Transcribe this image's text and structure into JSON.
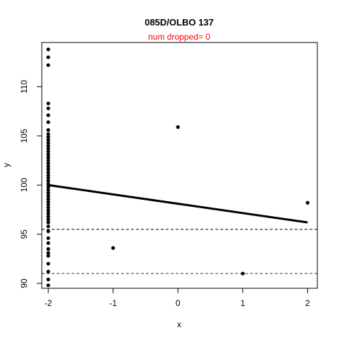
{
  "chart_data": {
    "type": "scatter",
    "title": "085D/OLBO 137",
    "subtitle": "num dropped= 0",
    "xlabel": "x",
    "ylabel": "y",
    "xlim": [
      -2.1,
      2.15
    ],
    "ylim": [
      89.5,
      114.5
    ],
    "xticks": [
      -2,
      -1,
      0,
      1,
      2
    ],
    "xtick_labels": [
      "-2",
      "-1",
      "0",
      "1",
      "2"
    ],
    "yticks": [
      90,
      95,
      100,
      105,
      110
    ],
    "ytick_labels": [
      "90",
      "95",
      "100",
      "105",
      "110"
    ],
    "grid": false,
    "points": [
      {
        "x": -2,
        "y": 113.8
      },
      {
        "x": -2,
        "y": 113.0
      },
      {
        "x": -2,
        "y": 112.2
      },
      {
        "x": -2,
        "y": 108.3
      },
      {
        "x": -2,
        "y": 107.8
      },
      {
        "x": -2,
        "y": 107.1
      },
      {
        "x": -2,
        "y": 106.4
      },
      {
        "x": -2,
        "y": 105.6
      },
      {
        "x": -2,
        "y": 105.2
      },
      {
        "x": -2,
        "y": 104.9
      },
      {
        "x": -2,
        "y": 104.6
      },
      {
        "x": -2,
        "y": 104.3
      },
      {
        "x": -2,
        "y": 104.0
      },
      {
        "x": -2,
        "y": 103.7
      },
      {
        "x": -2,
        "y": 103.4
      },
      {
        "x": -2,
        "y": 103.1
      },
      {
        "x": -2,
        "y": 102.8
      },
      {
        "x": -2,
        "y": 102.5
      },
      {
        "x": -2,
        "y": 102.2
      },
      {
        "x": -2,
        "y": 101.9
      },
      {
        "x": -2,
        "y": 101.6
      },
      {
        "x": -2,
        "y": 101.3
      },
      {
        "x": -2,
        "y": 101.0
      },
      {
        "x": -2,
        "y": 100.7
      },
      {
        "x": -2,
        "y": 100.4
      },
      {
        "x": -2,
        "y": 100.1
      },
      {
        "x": -2,
        "y": 99.8
      },
      {
        "x": -2,
        "y": 99.5
      },
      {
        "x": -2,
        "y": 99.2
      },
      {
        "x": -2,
        "y": 98.9
      },
      {
        "x": -2,
        "y": 98.6
      },
      {
        "x": -2,
        "y": 98.3
      },
      {
        "x": -2,
        "y": 98.0
      },
      {
        "x": -2,
        "y": 97.7
      },
      {
        "x": -2,
        "y": 97.4
      },
      {
        "x": -2,
        "y": 97.1
      },
      {
        "x": -2,
        "y": 96.8
      },
      {
        "x": -2,
        "y": 96.5
      },
      {
        "x": -2,
        "y": 96.2
      },
      {
        "x": -2,
        "y": 95.8
      },
      {
        "x": -2,
        "y": 95.3
      },
      {
        "x": -2,
        "y": 94.6
      },
      {
        "x": -2,
        "y": 94.1
      },
      {
        "x": -2,
        "y": 93.5
      },
      {
        "x": -2,
        "y": 93.1
      },
      {
        "x": -2,
        "y": 92.8
      },
      {
        "x": -2,
        "y": 92.0
      },
      {
        "x": -2,
        "y": 91.2
      },
      {
        "x": -2,
        "y": 90.4
      },
      {
        "x": -2,
        "y": 89.8
      },
      {
        "x": -1,
        "y": 93.6
      },
      {
        "x": 0,
        "y": 105.9
      },
      {
        "x": 1,
        "y": 91.0
      },
      {
        "x": 2,
        "y": 98.2
      }
    ],
    "fit_line": {
      "x": [
        -2,
        2
      ],
      "y": [
        100.0,
        96.2
      ]
    },
    "reference_lines": [
      {
        "y": 95.5,
        "style": "dashed",
        "color": "#000000"
      },
      {
        "y": 91.0,
        "style": "dashed",
        "color": "#8b1a1a"
      }
    ],
    "colors": {
      "points": "#000000",
      "fit_line": "#000000",
      "subtitle": "#ff0000"
    }
  }
}
